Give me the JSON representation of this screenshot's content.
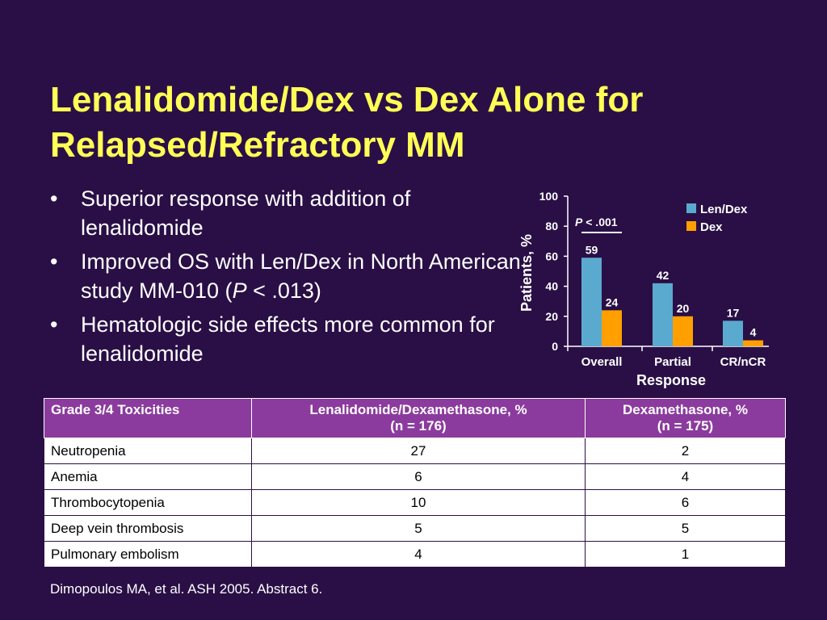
{
  "slide": {
    "title_line1": "Lenalidomide/Dex vs Dex Alone for",
    "title_line2": "Relapsed/Refractory MM",
    "bullets": [
      {
        "text": "Superior response with addition of lenalidomide"
      },
      {
        "pre": "Improved OS with Len/Dex in North American study MM-010 (",
        "p": "P",
        "post": " < .013)"
      },
      {
        "text": "Hematologic side effects more common for lenalidomide"
      }
    ],
    "citation": "Dimopoulos MA, et al. ASH 2005. Abstract 6."
  },
  "colors": {
    "background": "#2a0f46",
    "title": "#ffff55",
    "len_dex": "#5aaad0",
    "dex": "#ffa000",
    "table_header": "#8b3b9d"
  },
  "chart_data": {
    "type": "bar",
    "categories": [
      "Overall",
      "Partial",
      "CR/nCR"
    ],
    "series": [
      {
        "name": "Len/Dex",
        "values": [
          59,
          42,
          17
        ]
      },
      {
        "name": "Dex",
        "values": [
          24,
          20,
          4
        ]
      }
    ],
    "xlabel": "Response",
    "ylabel": "Patients, %",
    "ylim": [
      0,
      100
    ],
    "yticks": [
      "0",
      "20",
      "40",
      "60",
      "80",
      "100"
    ],
    "annotation": {
      "p": "P",
      "rest": " < .001"
    },
    "legend_position": "top-right",
    "grid": false
  },
  "table": {
    "headers": [
      {
        "line1": "Grade 3/4 Toxicities",
        "line2": ""
      },
      {
        "line1": "Lenalidomide/Dexamethasone, %",
        "line2": "(n = 176)"
      },
      {
        "line1": "Dexamethasone, %",
        "line2": "(n = 175)"
      }
    ],
    "rows": [
      [
        "Neutropenia",
        "27",
        "2"
      ],
      [
        "Anemia",
        "6",
        "4"
      ],
      [
        "Thrombocytopenia",
        "10",
        "6"
      ],
      [
        "Deep vein thrombosis",
        "5",
        "5"
      ],
      [
        "Pulmonary embolism",
        "4",
        "1"
      ]
    ]
  }
}
